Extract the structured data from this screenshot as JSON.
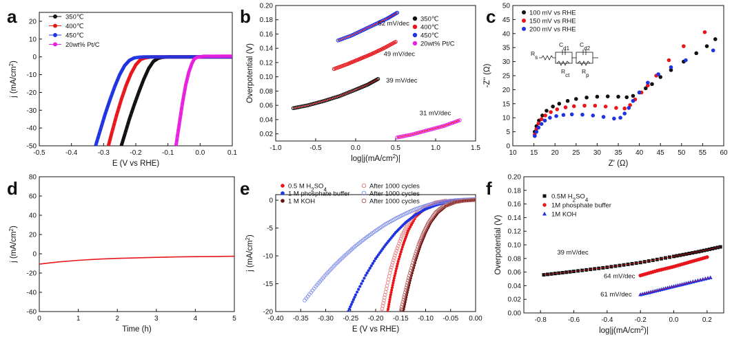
{
  "chart_data": [
    {
      "id": "a",
      "type": "line",
      "panel_label": "a",
      "xlabel": "E (V vs RHE)",
      "ylabel": "j (mA/cm²)",
      "xlim": [
        -0.5,
        0.1
      ],
      "ylim": [
        -50,
        25
      ],
      "xticks": [
        -0.5,
        -0.4,
        -0.3,
        -0.2,
        -0.1,
        0.0,
        0.1
      ],
      "xtick_labels": [
        "-0.5",
        "-0.4",
        "-0.3",
        "-0.2",
        "-0.1",
        "0.0",
        "0.1"
      ],
      "yticks": [
        -50,
        -40,
        -30,
        -20,
        -10,
        0,
        10,
        20
      ],
      "ytick_labels": [
        "-50",
        "-40",
        "-30",
        "-20",
        "-10",
        "0",
        "10",
        "20"
      ],
      "legend_position": "top-left",
      "series": [
        {
          "name": "350℃",
          "color": "#111111",
          "marker": "filled",
          "x": [
            -0.245,
            -0.235,
            -0.22,
            -0.205,
            -0.19,
            -0.175,
            -0.16,
            -0.145,
            -0.13,
            -0.115,
            -0.1,
            -0.085,
            -0.07,
            0.1
          ],
          "y": [
            -50,
            -44,
            -35,
            -27,
            -19.5,
            -12.5,
            -6.5,
            -2.5,
            -0.8,
            -0.2,
            0,
            0,
            0,
            0
          ]
        },
        {
          "name": "400℃",
          "color": "#e8151b",
          "marker": "filled",
          "x": [
            -0.285,
            -0.275,
            -0.26,
            -0.245,
            -0.23,
            -0.215,
            -0.2,
            -0.185,
            -0.17,
            -0.155,
            -0.14,
            -0.12,
            0.1
          ],
          "y": [
            -50,
            -43,
            -33,
            -24,
            -16,
            -9.5,
            -4.5,
            -1.5,
            -0.5,
            -0.1,
            0,
            0,
            0
          ]
        },
        {
          "name": "450℃",
          "color": "#1f33e0",
          "marker": "filled",
          "x": [
            -0.325,
            -0.31,
            -0.295,
            -0.28,
            -0.265,
            -0.25,
            -0.235,
            -0.22,
            -0.205,
            -0.19,
            -0.175,
            -0.16,
            0.1
          ],
          "y": [
            -50,
            -41,
            -32,
            -24,
            -16.5,
            -10,
            -5,
            -2,
            -0.6,
            -0.2,
            0,
            0,
            0
          ]
        },
        {
          "name": "20wt% Pt/C",
          "color": "#e81fe0",
          "marker": "filled",
          "x": [
            -0.075,
            -0.065,
            -0.055,
            -0.045,
            -0.035,
            -0.025,
            -0.018,
            -0.01,
            0.0,
            0.01,
            0.1
          ],
          "y": [
            -50,
            -38,
            -26,
            -16,
            -8.5,
            -3.5,
            -1.2,
            -0.3,
            0,
            0.3,
            0.4
          ]
        }
      ]
    },
    {
      "id": "b",
      "type": "line",
      "panel_label": "b",
      "xlabel": "log|j(mA/cm²)|",
      "ylabel": "Overpotential (V)",
      "xlim": [
        -1.0,
        1.5
      ],
      "ylim": [
        0.01,
        0.2
      ],
      "xticks": [
        -1.0,
        -0.5,
        0.0,
        0.5,
        1.0,
        1.5
      ],
      "xtick_labels": [
        "-1.0",
        "-0.5",
        "0.0",
        "0.5",
        "1.0",
        "1.5"
      ],
      "yticks": [
        0.02,
        0.04,
        0.06,
        0.08,
        0.1,
        0.12,
        0.14,
        0.16,
        0.18,
        0.2
      ],
      "ytick_labels": [
        "0.02",
        "0.04",
        "0.06",
        "0.08",
        "0.10",
        "0.12",
        "0.14",
        "0.16",
        "0.18",
        "0.20"
      ],
      "legend_position": "top-right",
      "series": [
        {
          "name": "350℃",
          "color": "#111111",
          "x": [
            -0.78,
            -0.6,
            -0.4,
            -0.2,
            0.0,
            0.15,
            0.28
          ],
          "y": [
            0.056,
            0.06,
            0.066,
            0.073,
            0.082,
            0.089,
            0.097
          ]
        },
        {
          "name": "400℃",
          "color": "#e8151b",
          "x": [
            -0.27,
            -0.1,
            0.05,
            0.2,
            0.35,
            0.5
          ],
          "y": [
            0.111,
            0.118,
            0.125,
            0.132,
            0.14,
            0.149
          ]
        },
        {
          "name": "450℃",
          "color": "#1f33e0",
          "x": [
            -0.22,
            -0.05,
            0.1,
            0.25,
            0.4,
            0.52
          ],
          "y": [
            0.151,
            0.158,
            0.166,
            0.174,
            0.182,
            0.19
          ]
        },
        {
          "name": "20wt% Pt/C",
          "color": "#e81fe0",
          "x": [
            0.52,
            0.7,
            0.9,
            1.1,
            1.3
          ],
          "y": [
            0.015,
            0.019,
            0.025,
            0.031,
            0.039
          ]
        }
      ],
      "annotations": [
        {
          "text": "52 mV/dec",
          "x": 0.28,
          "y": 0.172
        },
        {
          "text": "49 mV/dec",
          "x": 0.35,
          "y": 0.129
        },
        {
          "text": "39 mV/dec",
          "x": 0.38,
          "y": 0.092
        },
        {
          "text": "31 mV/dec",
          "x": 0.8,
          "y": 0.046
        }
      ]
    },
    {
      "id": "c",
      "type": "scatter",
      "panel_label": "c",
      "xlabel": "Z' (Ω)",
      "ylabel": "-Z'' (Ω)",
      "xlim": [
        10,
        60
      ],
      "ylim": [
        0,
        50
      ],
      "xticks": [
        10,
        15,
        20,
        25,
        30,
        35,
        40,
        45,
        50,
        55,
        60
      ],
      "xtick_labels": [
        "10",
        "15",
        "20",
        "25",
        "30",
        "35",
        "40",
        "45",
        "50",
        "55",
        "60"
      ],
      "yticks": [
        0,
        5,
        10,
        15,
        20,
        25,
        30,
        35,
        40,
        45,
        50
      ],
      "ytick_labels": [
        "0",
        "5",
        "10",
        "15",
        "20",
        "25",
        "30",
        "35",
        "40",
        "45",
        "50"
      ],
      "legend_position": "top-left",
      "inset_labels": {
        "rs": "R",
        "rs_sub": "s",
        "cd1": "C",
        "cd1_sub": "d1",
        "cd2": "C",
        "cd2_sub": "d2",
        "rct": "R",
        "rct_sub": "ct",
        "rp": "R",
        "rp_sub": "p"
      },
      "series": [
        {
          "name": "100 mV vs RHE",
          "color": "#111111",
          "x": [
            15.2,
            15.6,
            16.2,
            17,
            18,
            19.5,
            21,
            23,
            25,
            27.5,
            30,
            32.5,
            35,
            37,
            38.5,
            40,
            41.5,
            43,
            45,
            47.5,
            50.5,
            53.5,
            56,
            58
          ],
          "y": [
            5,
            7,
            9,
            10.8,
            12.5,
            14,
            15,
            16,
            16.7,
            17.2,
            17.5,
            17.6,
            17.5,
            17.3,
            17.8,
            19,
            20.5,
            22,
            24.5,
            27,
            30,
            33,
            35.5,
            38
          ]
        },
        {
          "name": "150 mV vs RHE",
          "color": "#e8151b",
          "x": [
            15.2,
            15.6,
            16.1,
            16.8,
            17.7,
            19,
            20.5,
            22.5,
            24.5,
            27,
            29.5,
            32,
            34.5,
            36.5,
            37.8,
            39,
            40.5,
            42,
            44,
            47,
            50.5,
            55.5
          ],
          "y": [
            4,
            6,
            8,
            9.5,
            10.8,
            12,
            13,
            13.7,
            14.1,
            14.3,
            14.3,
            14,
            13.5,
            13.3,
            14.5,
            16.5,
            19,
            21.5,
            25,
            30.5,
            35.5,
            40.5
          ]
        },
        {
          "name": "200 mV vs RHE",
          "color": "#1f33e0",
          "x": [
            15.2,
            15.6,
            16.1,
            16.8,
            17.6,
            18.8,
            20.3,
            22,
            24,
            26.5,
            29,
            31.5,
            34,
            35.5,
            36.5,
            37.5,
            38.5,
            40,
            42,
            44.5,
            47.5,
            51,
            57.5
          ],
          "y": [
            3.5,
            5,
            6.5,
            7.8,
            9,
            10,
            10.6,
            11,
            11.2,
            11.1,
            10.8,
            10.3,
            9.7,
            10,
            11.5,
            13.5,
            16,
            19,
            22.5,
            25.5,
            28,
            30.5,
            34
          ]
        }
      ]
    },
    {
      "id": "d",
      "type": "line",
      "panel_label": "d",
      "xlabel": "Time (h)",
      "ylabel": "j (mA/cm²)",
      "xlim": [
        0,
        5
      ],
      "ylim": [
        -60,
        80
      ],
      "xticks": [
        0,
        1,
        2,
        3,
        4,
        5
      ],
      "xtick_labels": [
        "0",
        "1",
        "2",
        "3",
        "4",
        "5"
      ],
      "yticks": [
        -60,
        -40,
        -20,
        0,
        20,
        40,
        60,
        80
      ],
      "ytick_labels": [
        "-60",
        "-40",
        "-20",
        "0",
        "20",
        "40",
        "60",
        "80"
      ],
      "series": [
        {
          "name": "",
          "color": "#e8151b",
          "x": [
            0,
            0.2,
            0.5,
            1,
            1.5,
            2,
            2.5,
            3,
            3.5,
            4,
            4.5,
            5
          ],
          "y": [
            -10.8,
            -9.8,
            -8.4,
            -6.8,
            -5.6,
            -4.8,
            -4.2,
            -3.7,
            -3.3,
            -3.0,
            -2.8,
            -2.6
          ]
        }
      ]
    },
    {
      "id": "e",
      "type": "line",
      "panel_label": "e",
      "xlabel": "E (V vs RHE)",
      "ylabel": "j (mA/cm²)",
      "xlim": [
        -0.4,
        0.0
      ],
      "ylim": [
        -20,
        1
      ],
      "xticks": [
        -0.4,
        -0.35,
        -0.3,
        -0.25,
        -0.2,
        -0.15,
        -0.1,
        -0.05,
        0.0
      ],
      "xtick_labels": [
        "-0.40",
        "-0.35",
        "-0.30",
        "-0.25",
        "-0.20",
        "-0.15",
        "-0.10",
        "-0.05",
        "0.00"
      ],
      "yticks": [
        -20,
        -15,
        -10,
        -5,
        0
      ],
      "ytick_labels": [
        "-20",
        "-15",
        "-10",
        "-5",
        "0"
      ],
      "legend_position": "top-left",
      "legend_entries": [
        {
          "text": "0.5 M H",
          "sub": "2",
          "tail": "SO",
          "sub2": "4",
          "color": "#e8151b",
          "filled": true
        },
        {
          "text": "1 M phosphate buffer",
          "color": "#1f33e0",
          "filled": true
        },
        {
          "text": "1 M KOH",
          "color": "#6b1010",
          "filled": true
        },
        {
          "text": "After 1000 cycles",
          "color": "#e87f7f",
          "filled": false
        },
        {
          "text": "After 1000 cycles",
          "color": "#7f8fe8",
          "filled": false
        },
        {
          "text": "After 1000 cycles",
          "color": "#b06060",
          "filled": false
        }
      ],
      "series": [
        {
          "name": "0.5 M H2SO4",
          "color": "#e8151b",
          "x": [
            -0.176,
            -0.17,
            -0.163,
            -0.155,
            -0.145,
            -0.135,
            -0.12,
            -0.1,
            -0.08,
            -0.06,
            -0.04,
            0.0
          ],
          "y": [
            -20,
            -17,
            -14,
            -11,
            -8,
            -5.5,
            -3,
            -1.4,
            -0.6,
            -0.2,
            -0.05,
            0
          ]
        },
        {
          "name": "After 1000 cycles (0.5 M H2SO4)",
          "color": "#e87f7f",
          "x": [
            -0.188,
            -0.18,
            -0.17,
            -0.16,
            -0.148,
            -0.135,
            -0.118,
            -0.1,
            -0.08,
            -0.06,
            0.0
          ],
          "y": [
            -20,
            -16.5,
            -12.5,
            -9.5,
            -6.5,
            -4.2,
            -2.3,
            -1.1,
            -0.4,
            -0.1,
            0.1
          ]
        },
        {
          "name": "1 M phosphate buffer",
          "color": "#1f33e0",
          "x": [
            -0.255,
            -0.24,
            -0.22,
            -0.2,
            -0.18,
            -0.16,
            -0.14,
            -0.12,
            -0.1,
            -0.08,
            -0.06,
            -0.04,
            0.0
          ],
          "y": [
            -20,
            -17,
            -13.5,
            -10.5,
            -8,
            -5.8,
            -4,
            -2.6,
            -1.6,
            -0.9,
            -0.4,
            -0.1,
            0.1
          ]
        },
        {
          "name": "After 1000 cycles (1 M phosphate buffer)",
          "color": "#7f8fe8",
          "x": [
            -0.342,
            -0.32,
            -0.3,
            -0.28,
            -0.26,
            -0.24,
            -0.22,
            -0.2,
            -0.18,
            -0.16,
            -0.14,
            -0.12,
            -0.1,
            -0.08,
            -0.06,
            -0.04,
            -0.02,
            0.0
          ],
          "y": [
            -18,
            -15.5,
            -13.4,
            -11.5,
            -9.8,
            -8.2,
            -6.8,
            -5.5,
            -4.3,
            -3.3,
            -2.4,
            -1.6,
            -1,
            -0.5,
            -0.2,
            0,
            0.1,
            0.2
          ]
        },
        {
          "name": "1 M KOH",
          "color": "#6b1010",
          "x": [
            -0.145,
            -0.138,
            -0.13,
            -0.12,
            -0.11,
            -0.1,
            -0.09,
            -0.075,
            -0.06,
            -0.04,
            -0.02,
            0.0
          ],
          "y": [
            -20,
            -17,
            -14,
            -10.8,
            -8,
            -5.8,
            -4,
            -2.2,
            -1.1,
            -0.4,
            -0.1,
            0
          ]
        },
        {
          "name": "After 1000 cycles (1 M KOH)",
          "color": "#b06060",
          "x": [
            -0.15,
            -0.142,
            -0.134,
            -0.124,
            -0.114,
            -0.104,
            -0.094,
            -0.08,
            -0.065,
            -0.045,
            -0.025,
            0.0
          ],
          "y": [
            -20,
            -17,
            -14,
            -10.8,
            -8,
            -5.8,
            -4,
            -2.2,
            -1.1,
            -0.4,
            -0.1,
            0.05
          ]
        }
      ]
    },
    {
      "id": "f",
      "type": "scatter",
      "panel_label": "f",
      "xlabel": "log|j(mA/cm²)|",
      "ylabel": "Overpotential (V)",
      "xlim": [
        -0.9,
        0.3
      ],
      "ylim": [
        0.0,
        0.2
      ],
      "xticks": [
        -0.8,
        -0.6,
        -0.4,
        -0.2,
        0.0,
        0.2
      ],
      "xtick_labels": [
        "-0.8",
        "-0.6",
        "-0.4",
        "-0.2",
        "0.0",
        "0.2"
      ],
      "yticks": [
        0.0,
        0.02,
        0.04,
        0.06,
        0.08,
        0.1,
        0.12,
        0.14,
        0.16,
        0.18,
        0.2
      ],
      "ytick_labels": [
        "0.00",
        "0.02",
        "0.04",
        "0.06",
        "0.08",
        "0.10",
        "0.12",
        "0.14",
        "0.16",
        "0.18",
        "0.20"
      ],
      "legend_position": "top-left",
      "legend_entries": [
        {
          "text": "0.5M H",
          "sub": "2",
          "tail": "SO",
          "sub2": "4",
          "color": "#111111",
          "marker": "square"
        },
        {
          "text": "1M phosphate buffer",
          "color": "#e8151b",
          "marker": "circle"
        },
        {
          "text": "1M KOH",
          "color": "#1f33e0",
          "marker": "triangle"
        }
      ],
      "series": [
        {
          "name": "0.5M H2SO4",
          "color": "#111111",
          "marker": "square",
          "x": [
            -0.78,
            -0.6,
            -0.4,
            -0.2,
            0.0,
            0.15,
            0.28
          ],
          "y": [
            0.056,
            0.061,
            0.067,
            0.074,
            0.083,
            0.09,
            0.097
          ]
        },
        {
          "name": "1M phosphate buffer",
          "color": "#e8151b",
          "marker": "circle",
          "x": [
            -0.2,
            -0.1,
            0.0,
            0.1,
            0.2
          ],
          "y": [
            0.055,
            0.062,
            0.068,
            0.075,
            0.082
          ]
        },
        {
          "name": "1M KOH",
          "color": "#1f33e0",
          "marker": "triangle",
          "x": [
            -0.2,
            -0.1,
            0.0,
            0.1,
            0.22
          ],
          "y": [
            0.027,
            0.033,
            0.039,
            0.045,
            0.052
          ]
        }
      ],
      "annotations": [
        {
          "text": "39 mV/dec",
          "x": -0.7,
          "y": 0.086
        },
        {
          "text": "64 mV/dec",
          "x": -0.42,
          "y": 0.051
        },
        {
          "text": "61 mV/dec",
          "x": -0.44,
          "y": 0.024
        }
      ]
    }
  ]
}
